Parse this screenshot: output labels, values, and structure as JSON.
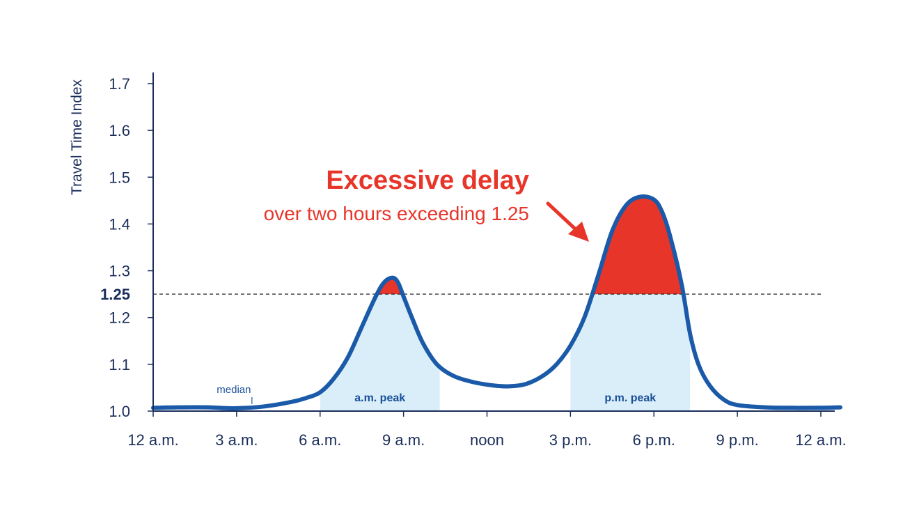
{
  "chart_data": {
    "type": "area",
    "title": "Excessive delay",
    "subtitle": "over two hours exceeding 1.25",
    "ylabel": "Travel Time Index",
    "xlabel": "",
    "ylim": [
      1.0,
      1.72
    ],
    "xlim": [
      0,
      24.5
    ],
    "y_ticks": [
      {
        "value": 1.0,
        "label": "1.0"
      },
      {
        "value": 1.1,
        "label": "1.1"
      },
      {
        "value": 1.2,
        "label": "1.2"
      },
      {
        "value": 1.3,
        "label": "1.3"
      },
      {
        "value": 1.4,
        "label": "1.4"
      },
      {
        "value": 1.5,
        "label": "1.5"
      },
      {
        "value": 1.6,
        "label": "1.6"
      },
      {
        "value": 1.7,
        "label": "1.7"
      }
    ],
    "x_ticks": [
      {
        "value": 0,
        "label": "12 a.m."
      },
      {
        "value": 3,
        "label": "3 a.m."
      },
      {
        "value": 6,
        "label": "6 a.m."
      },
      {
        "value": 9,
        "label": "9 a.m."
      },
      {
        "value": 12,
        "label": "noon"
      },
      {
        "value": 15,
        "label": "3 p.m."
      },
      {
        "value": 18,
        "label": "6 p.m."
      },
      {
        "value": 21,
        "label": "9 p.m."
      },
      {
        "value": 24,
        "label": "12 a.m."
      }
    ],
    "threshold": {
      "value": 1.25,
      "label": "1.25"
    },
    "peak_bands": [
      {
        "label": "a.m. peak",
        "start": 6,
        "end": 10.3
      },
      {
        "label": "p.m. peak",
        "start": 15,
        "end": 19.3
      }
    ],
    "annotation": {
      "label": "median",
      "x": 2.9,
      "y": 1.005
    },
    "series": [
      {
        "x": [
          0,
          1,
          2,
          2.9,
          4,
          5,
          5.5,
          6,
          6.5,
          7,
          7.5,
          8,
          8.3,
          8.6,
          8.8,
          9,
          9.3,
          9.7,
          10.2,
          10.8,
          11.5,
          12.2,
          12.8,
          13.4,
          14,
          14.5,
          15,
          15.5,
          16,
          16.5,
          17,
          17.5,
          18,
          18.3,
          18.6,
          19,
          19.3,
          19.6,
          20,
          20.5,
          21,
          22,
          23,
          24,
          24.7
        ],
        "y": [
          1.007,
          1.008,
          1.008,
          1.006,
          1.01,
          1.02,
          1.028,
          1.04,
          1.07,
          1.115,
          1.18,
          1.245,
          1.275,
          1.285,
          1.275,
          1.245,
          1.2,
          1.145,
          1.1,
          1.075,
          1.062,
          1.055,
          1.053,
          1.058,
          1.075,
          1.1,
          1.14,
          1.2,
          1.29,
          1.385,
          1.44,
          1.458,
          1.452,
          1.425,
          1.37,
          1.27,
          1.165,
          1.1,
          1.055,
          1.025,
          1.013,
          1.008,
          1.007,
          1.007,
          1.008
        ]
      }
    ],
    "colors": {
      "line": "#1a5aa8",
      "axis": "#1a2d5a",
      "peak_band": "#d9eef8",
      "excess": "#e8352a",
      "text_red": "#e8352a",
      "threshold": "#222222"
    }
  }
}
